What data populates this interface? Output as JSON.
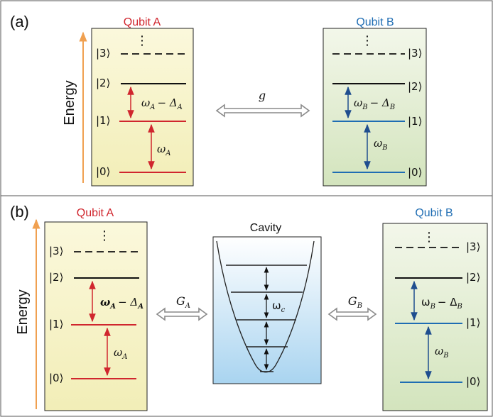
{
  "panel_a": {
    "label": "(a)",
    "energy_label": "Energy",
    "qubit_a": {
      "title": "Qubit A",
      "dots": "⋮",
      "levels": [
        "|0⟩",
        "|1⟩",
        "|2⟩",
        "|3⟩"
      ],
      "gap_10": "ω",
      "gap_10_sub": "A",
      "gap_21": "ω",
      "gap_21_sub": "A",
      "gap_21_minus": "− Δ",
      "gap_21_minus_sub": "A"
    },
    "coupling": "g",
    "qubit_b": {
      "title": "Qubit B",
      "dots": "⋮",
      "levels": [
        "|0⟩",
        "|1⟩",
        "|2⟩",
        "|3⟩"
      ],
      "gap_10": "ω",
      "gap_10_sub": "B",
      "gap_21": "ω",
      "gap_21_sub": "B",
      "gap_21_minus": "− Δ",
      "gap_21_minus_sub": "B"
    }
  },
  "panel_b": {
    "label": "(b)",
    "energy_label": "Energy",
    "qubit_a": {
      "title": "Qubit A",
      "dots": "⋮",
      "levels": [
        "|0⟩",
        "|1⟩",
        "|2⟩",
        "|3⟩"
      ],
      "gap_10": "ω",
      "gap_10_sub": "A",
      "gap_21": "ω",
      "gap_21_sub": "A",
      "gap_21_minus": "− Δ",
      "gap_21_minus_sub": "A"
    },
    "coupling_a": "G",
    "coupling_a_sub": "A",
    "cavity": {
      "title": "Cavity",
      "freq": "ω",
      "freq_sub": "c"
    },
    "coupling_b": "G",
    "coupling_b_sub": "B",
    "qubit_b": {
      "title": "Qubit B",
      "dots": "⋮",
      "levels": [
        "|0⟩",
        "|1⟩",
        "|2⟩",
        "|3⟩"
      ],
      "gap_10": "ω",
      "gap_10_sub": "B",
      "gap_21": "ω",
      "gap_21_sub": "B",
      "gap_21_minus": "− Δ",
      "gap_21_minus_sub": "B"
    }
  },
  "colors": {
    "qubit_a": "#d0262e",
    "qubit_b": "#1f6db3",
    "energy_arrow": "#f0a050",
    "coupling_arrow": "#8a8a8a",
    "qubit_a_bg": "#f7f3c8",
    "qubit_b_bg": "#e7f0d5",
    "cavity_bg": "#b6dcf3"
  }
}
